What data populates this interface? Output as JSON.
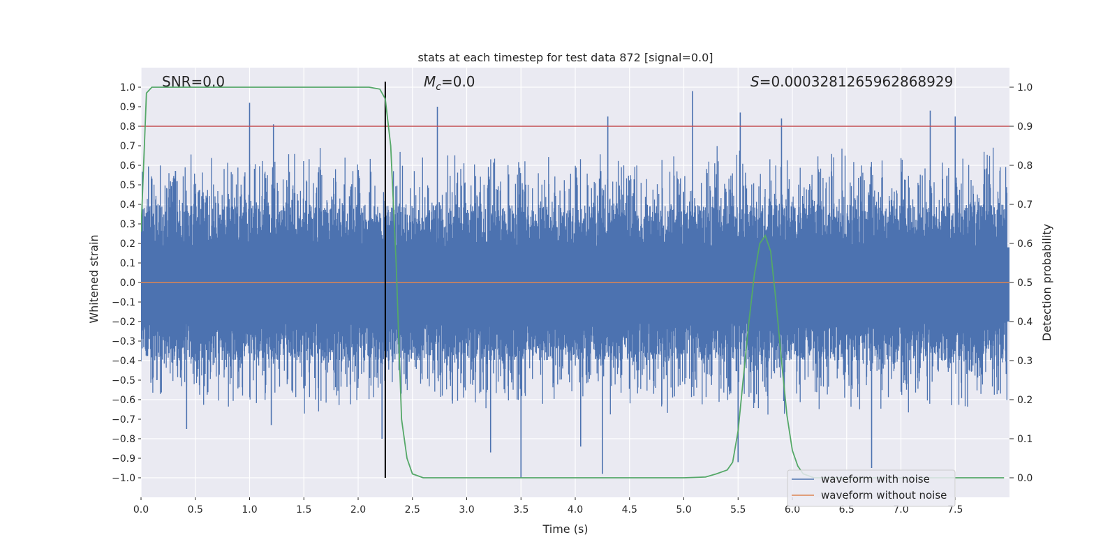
{
  "chart_data": {
    "type": "line",
    "title": "stats at each timestep for test data 872 [signal=0.0]",
    "xlabel": "Time (s)",
    "ylabel": "Whitened strain",
    "y2label": "Detection probability",
    "xlim": [
      0.0,
      8.0
    ],
    "ylim": [
      -1.1,
      1.1
    ],
    "y2lim": [
      -0.05,
      1.05
    ],
    "x_ticks": [
      0.0,
      0.5,
      1.0,
      1.5,
      2.0,
      2.5,
      3.0,
      3.5,
      4.0,
      4.5,
      5.0,
      5.5,
      6.0,
      6.5,
      7.0,
      7.5
    ],
    "x_tick_labels": [
      "0.0",
      "0.5",
      "1.0",
      "1.5",
      "2.0",
      "2.5",
      "3.0",
      "3.5",
      "4.0",
      "4.5",
      "5.0",
      "5.5",
      "6.0",
      "6.5",
      "7.0",
      "7.5"
    ],
    "y_ticks": [
      1.0,
      0.9,
      0.8,
      0.7,
      0.6,
      0.5,
      0.4,
      0.3,
      0.2,
      0.1,
      0.0,
      -0.1,
      -0.2,
      -0.3,
      -0.4,
      -0.5,
      -0.6,
      -0.7,
      -0.8,
      -0.9,
      -1.0
    ],
    "y_tick_labels": [
      "1.0",
      "0.9",
      "0.8",
      "0.7",
      "0.6",
      "0.5",
      "0.4",
      "0.3",
      "0.2",
      "0.1",
      "0.0",
      "−0.1",
      "−0.2",
      "−0.3",
      "−0.4",
      "−0.5",
      "−0.6",
      "−0.7",
      "−0.8",
      "−0.9",
      "−1.0"
    ],
    "y2_ticks": [
      1.0,
      0.9,
      0.8,
      0.7,
      0.6,
      0.5,
      0.4,
      0.3,
      0.2,
      0.1,
      0.0
    ],
    "y2_tick_labels": [
      "1.0",
      "0.9",
      "0.8",
      "0.7",
      "0.6",
      "0.5",
      "0.4",
      "0.3",
      "0.2",
      "0.1",
      "0.0"
    ],
    "annotations": {
      "snr": "SNR=0.0",
      "mc_symbol": "M",
      "mc_sub": "c",
      "mc_value": "=0.0",
      "s_symbol": "S",
      "s_value": "=0.0003281265962868929"
    },
    "threshold_line": {
      "axis": "right",
      "value": 0.9,
      "color": "#c44e52"
    },
    "vertical_marker": {
      "x": 2.25,
      "color": "#000000"
    },
    "legend": {
      "position": "lower-right",
      "entries": [
        {
          "label": "waveform with noise",
          "color": "#4c72b0"
        },
        {
          "label": "waveform without noise",
          "color": "#dd8452"
        }
      ]
    },
    "series": [
      {
        "name": "waveform with noise",
        "axis": "left",
        "color": "#4c72b0",
        "style": "noise",
        "envelope": {
          "core": 0.18,
          "typical_high": 0.55,
          "typical_low": -0.5
        },
        "spikes": [
          {
            "x": 1.0,
            "y": 0.92
          },
          {
            "x": 2.73,
            "y": 0.9
          },
          {
            "x": 5.08,
            "y": 0.98
          },
          {
            "x": 4.3,
            "y": 0.85
          },
          {
            "x": 5.52,
            "y": 0.87
          },
          {
            "x": 5.9,
            "y": 0.84
          },
          {
            "x": 7.5,
            "y": 0.85
          },
          {
            "x": 7.27,
            "y": 0.88
          },
          {
            "x": 1.22,
            "y": 0.81
          },
          {
            "x": 3.5,
            "y": -1.0
          },
          {
            "x": 4.25,
            "y": -0.98
          },
          {
            "x": 6.73,
            "y": -0.95
          },
          {
            "x": 3.22,
            "y": -0.87
          },
          {
            "x": 5.5,
            "y": -0.92
          },
          {
            "x": 4.05,
            "y": -0.84
          },
          {
            "x": 0.42,
            "y": -0.75
          },
          {
            "x": 1.2,
            "y": -0.73
          },
          {
            "x": 2.22,
            "y": -0.8
          }
        ]
      },
      {
        "name": "waveform without noise",
        "axis": "left",
        "color": "#dd8452",
        "x": [
          0.0,
          8.0
        ],
        "y": [
          0.0,
          0.0
        ]
      },
      {
        "name": "detection probability",
        "axis": "right",
        "color": "#55a868",
        "x": [
          0.0,
          0.05,
          0.1,
          0.2,
          0.5,
          1.0,
          1.5,
          2.0,
          2.1,
          2.2,
          2.25,
          2.3,
          2.35,
          2.4,
          2.45,
          2.5,
          2.6,
          3.0,
          4.0,
          5.0,
          5.2,
          5.3,
          5.4,
          5.45,
          5.5,
          5.55,
          5.6,
          5.65,
          5.7,
          5.75,
          5.8,
          5.85,
          5.9,
          5.95,
          6.0,
          6.05,
          6.1,
          6.2,
          6.5,
          7.0,
          7.5,
          7.95
        ],
        "y": [
          0.63,
          0.985,
          1.0,
          1.0,
          1.0,
          1.0,
          1.0,
          1.0,
          1.0,
          0.995,
          0.97,
          0.85,
          0.55,
          0.15,
          0.05,
          0.01,
          0.0,
          0.0,
          0.0,
          0.0,
          0.002,
          0.01,
          0.02,
          0.04,
          0.12,
          0.26,
          0.4,
          0.52,
          0.6,
          0.62,
          0.58,
          0.45,
          0.3,
          0.16,
          0.07,
          0.03,
          0.01,
          0.0,
          0.0,
          0.0,
          0.0,
          0.0
        ]
      }
    ]
  }
}
